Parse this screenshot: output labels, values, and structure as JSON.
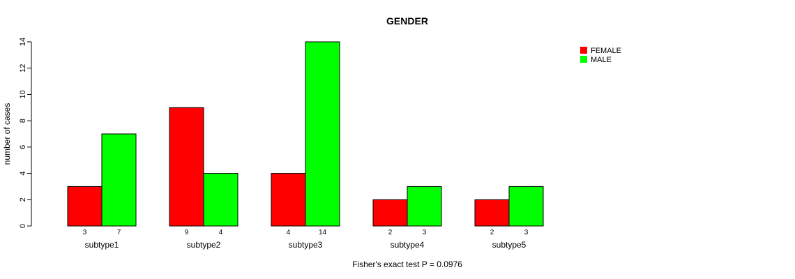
{
  "chart_data": {
    "type": "bar",
    "title": "GENDER",
    "ylabel": "number of cases",
    "xlabel": "Fisher's exact test P = 0.0976",
    "categories": [
      "subtype1",
      "subtype2",
      "subtype3",
      "subtype4",
      "subtype5"
    ],
    "series": [
      {
        "name": "FEMALE",
        "color": "#ff0000",
        "values": [
          3,
          9,
          4,
          2,
          2
        ]
      },
      {
        "name": "MALE",
        "color": "#00ff00",
        "values": [
          7,
          4,
          14,
          3,
          3
        ]
      }
    ],
    "ylim": [
      0,
      14
    ],
    "yticks": [
      0,
      2,
      4,
      6,
      8,
      10,
      12,
      14
    ],
    "grid": false,
    "legend": "top-right"
  }
}
